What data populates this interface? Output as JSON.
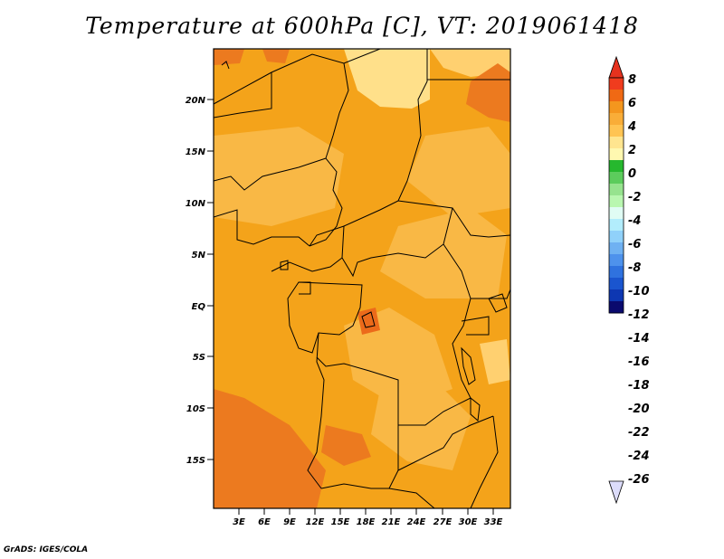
{
  "title": "Temperature at 600hPa [C], VT: 2019061418",
  "credit": "GrADS: IGES/COLA",
  "map": {
    "lat_labels": [
      "20N",
      "15N",
      "10N",
      "5N",
      "EQ",
      "5S",
      "10S",
      "15S"
    ],
    "lon_labels": [
      "3E",
      "6E",
      "9E",
      "12E",
      "15E",
      "18E",
      "21E",
      "24E",
      "27E",
      "30E",
      "33E"
    ]
  },
  "colorbar": {
    "labels": [
      "8",
      "6",
      "4",
      "2",
      "0",
      "-2",
      "-4",
      "-6",
      "-8",
      "-10",
      "-12",
      "-14",
      "-16",
      "-18",
      "-20",
      "-22",
      "-24",
      "-26"
    ],
    "colors": [
      "#f03c1e",
      "#f06914",
      "#f4961e",
      "#f9ad38",
      "#ffc453",
      "#ffe58f",
      "#fff8b0",
      "#26b82e",
      "#5ccc5c",
      "#96e38e",
      "#b9f7b0",
      "#e0fcf4",
      "#b2edfc",
      "#90d1fa",
      "#6fb1f2",
      "#4e92ec",
      "#2f72df",
      "#1a55cf",
      "#0d37b2",
      "#0a0a6e"
    ],
    "over_color": "#e6321e",
    "under_color": "#dcdcfa"
  }
}
